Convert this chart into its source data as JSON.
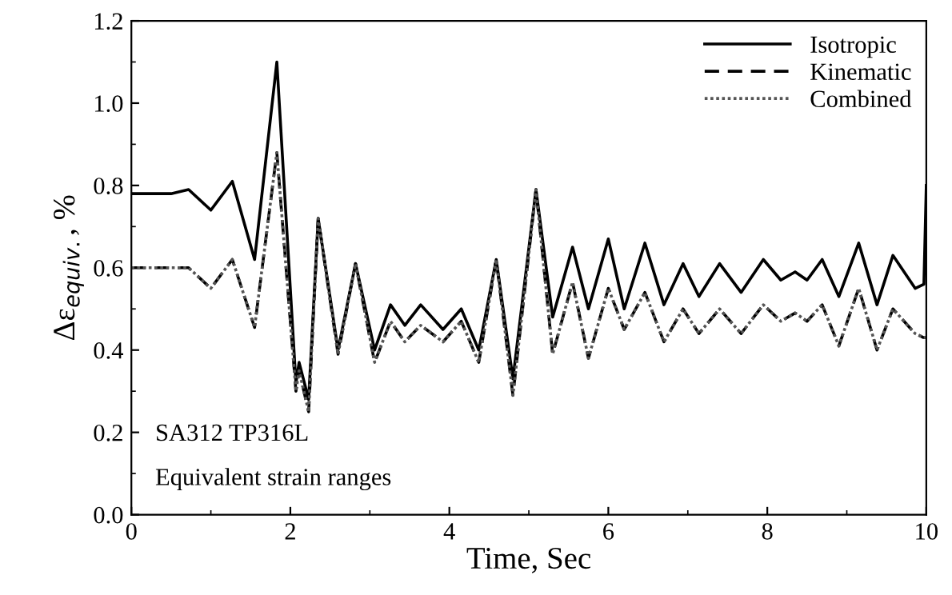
{
  "chart_data": {
    "type": "line",
    "xlabel": "Time, Sec",
    "ylabel": "Δε$_{equiv.}$, %",
    "xlim": [
      0,
      10
    ],
    "ylim": [
      0,
      1.2
    ],
    "xticks": [
      0,
      2,
      4,
      6,
      8,
      10
    ],
    "yticks": [
      {
        "value": 0,
        "label": "0.0"
      },
      {
        "value": 0.2,
        "label": "0.2"
      },
      {
        "value": 0.4,
        "label": "0.4"
      },
      {
        "value": 0.6,
        "label": "0.6"
      },
      {
        "value": 0.8,
        "label": "0.8"
      },
      {
        "value": 1.0,
        "label": "1.0"
      },
      {
        "value": 1.2,
        "label": "1.2"
      }
    ],
    "x": [
      0,
      0.5,
      0.72,
      1.0,
      1.27,
      1.55,
      1.83,
      2.07,
      2.11,
      2.23,
      2.35,
      2.6,
      2.82,
      3.06,
      3.26,
      3.44,
      3.64,
      3.92,
      4.15,
      4.37,
      4.59,
      4.8,
      5.09,
      5.3,
      5.55,
      5.75,
      6.0,
      6.2,
      6.46,
      6.7,
      6.94,
      7.14,
      7.4,
      7.67,
      7.95,
      8.17,
      8.35,
      8.5,
      8.69,
      8.9,
      9.15,
      9.38,
      9.58,
      9.86,
      9.97,
      10
    ],
    "series": [
      {
        "name": "Isotropic",
        "color": "#000000",
        "line_style": "solid",
        "values": [
          0.78,
          0.78,
          0.79,
          0.74,
          0.81,
          0.62,
          1.1,
          0.32,
          0.37,
          0.28,
          0.72,
          0.4,
          0.61,
          0.4,
          0.51,
          0.46,
          0.51,
          0.45,
          0.5,
          0.4,
          0.62,
          0.33,
          0.79,
          0.48,
          0.65,
          0.5,
          0.67,
          0.5,
          0.66,
          0.51,
          0.61,
          0.53,
          0.61,
          0.54,
          0.62,
          0.57,
          0.59,
          0.57,
          0.62,
          0.53,
          0.66,
          0.51,
          0.63,
          0.55,
          0.56,
          0.8
        ]
      },
      {
        "name": "Kinematic",
        "color": "#000000",
        "line_style": "dashed",
        "values": [
          0.6,
          0.6,
          0.6,
          0.55,
          0.62,
          0.455,
          0.88,
          0.3,
          0.35,
          0.25,
          0.72,
          0.39,
          0.61,
          0.37,
          0.47,
          0.42,
          0.46,
          0.42,
          0.47,
          0.37,
          0.62,
          0.29,
          0.79,
          0.39,
          0.565,
          0.38,
          0.55,
          0.45,
          0.54,
          0.42,
          0.5,
          0.44,
          0.5,
          0.44,
          0.51,
          0.47,
          0.49,
          0.47,
          0.51,
          0.41,
          0.55,
          0.4,
          0.5,
          0.44,
          0.43,
          0.43
        ]
      },
      {
        "name": "Combined",
        "color": "#555555",
        "line_style": "dotted",
        "values": [
          0.6,
          0.6,
          0.6,
          0.55,
          0.62,
          0.455,
          0.88,
          0.3,
          0.35,
          0.25,
          0.72,
          0.39,
          0.61,
          0.37,
          0.47,
          0.42,
          0.46,
          0.42,
          0.47,
          0.37,
          0.62,
          0.29,
          0.79,
          0.39,
          0.565,
          0.38,
          0.55,
          0.45,
          0.54,
          0.42,
          0.5,
          0.44,
          0.5,
          0.44,
          0.51,
          0.47,
          0.49,
          0.47,
          0.51,
          0.41,
          0.55,
          0.4,
          0.5,
          0.44,
          0.43,
          0.43
        ]
      }
    ],
    "legend": "top right",
    "grid": false,
    "marker": "none",
    "annotations": [
      "SA312 TP316L",
      "Equivalent strain ranges"
    ]
  }
}
